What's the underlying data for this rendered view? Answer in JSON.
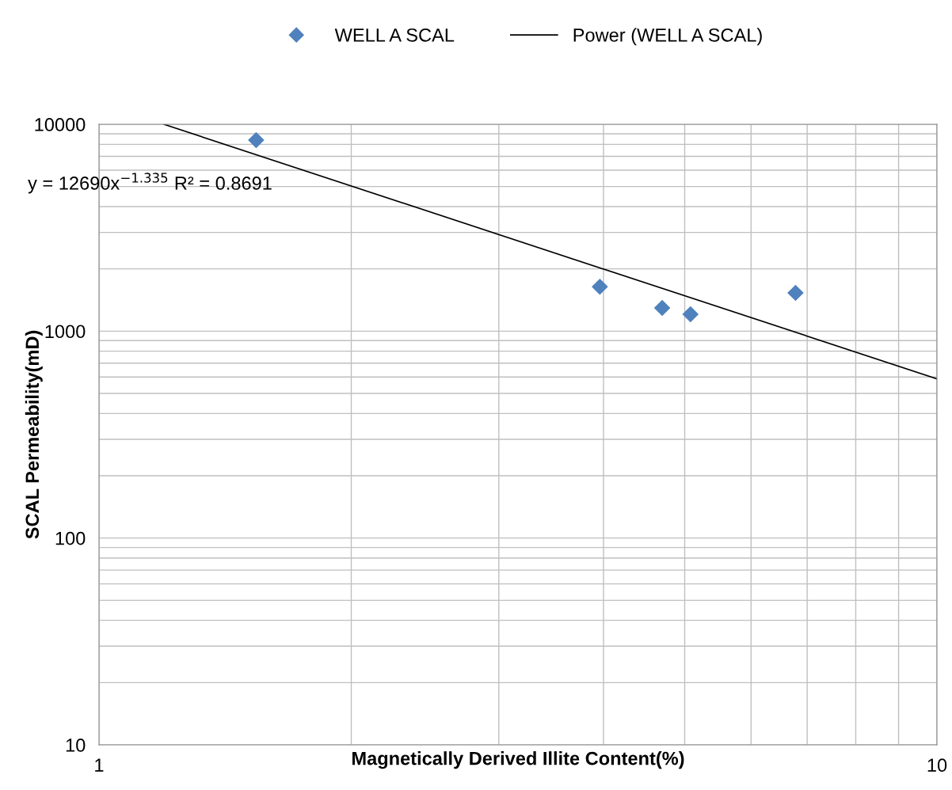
{
  "chart_data": {
    "type": "scatter",
    "xlabel": "Magnetically Derived Illite Content(%)",
    "ylabel": "SCAL Permeability(mD)",
    "annotations": [
      "y = 12690x$^{−1.335}$ R² = 0.8691"
    ],
    "series": [
      {
        "name": "WELL A SCAL",
        "color": "#4f81bd",
        "marker": "diamond",
        "x": [
          1.54,
          3.96,
          4.7,
          5.08,
          6.78
        ],
        "values": [
          8380,
          1640,
          1295,
          1207,
          1530
        ]
      },
      {
        "name": "Power (WELL A SCAL)",
        "type": "line",
        "color": "#000000",
        "marker": "none",
        "line_style": "solid",
        "x": [
          1.195,
          10
        ],
        "values": [
          10000,
          588
        ]
      }
    ],
    "log": "xy",
    "xlim": [
      1,
      10
    ],
    "xticks": [
      1,
      10
    ],
    "ylim": [
      10,
      10000
    ],
    "yticks": [
      10,
      100,
      1000,
      10000
    ],
    "grid": true,
    "legend": "top"
  }
}
